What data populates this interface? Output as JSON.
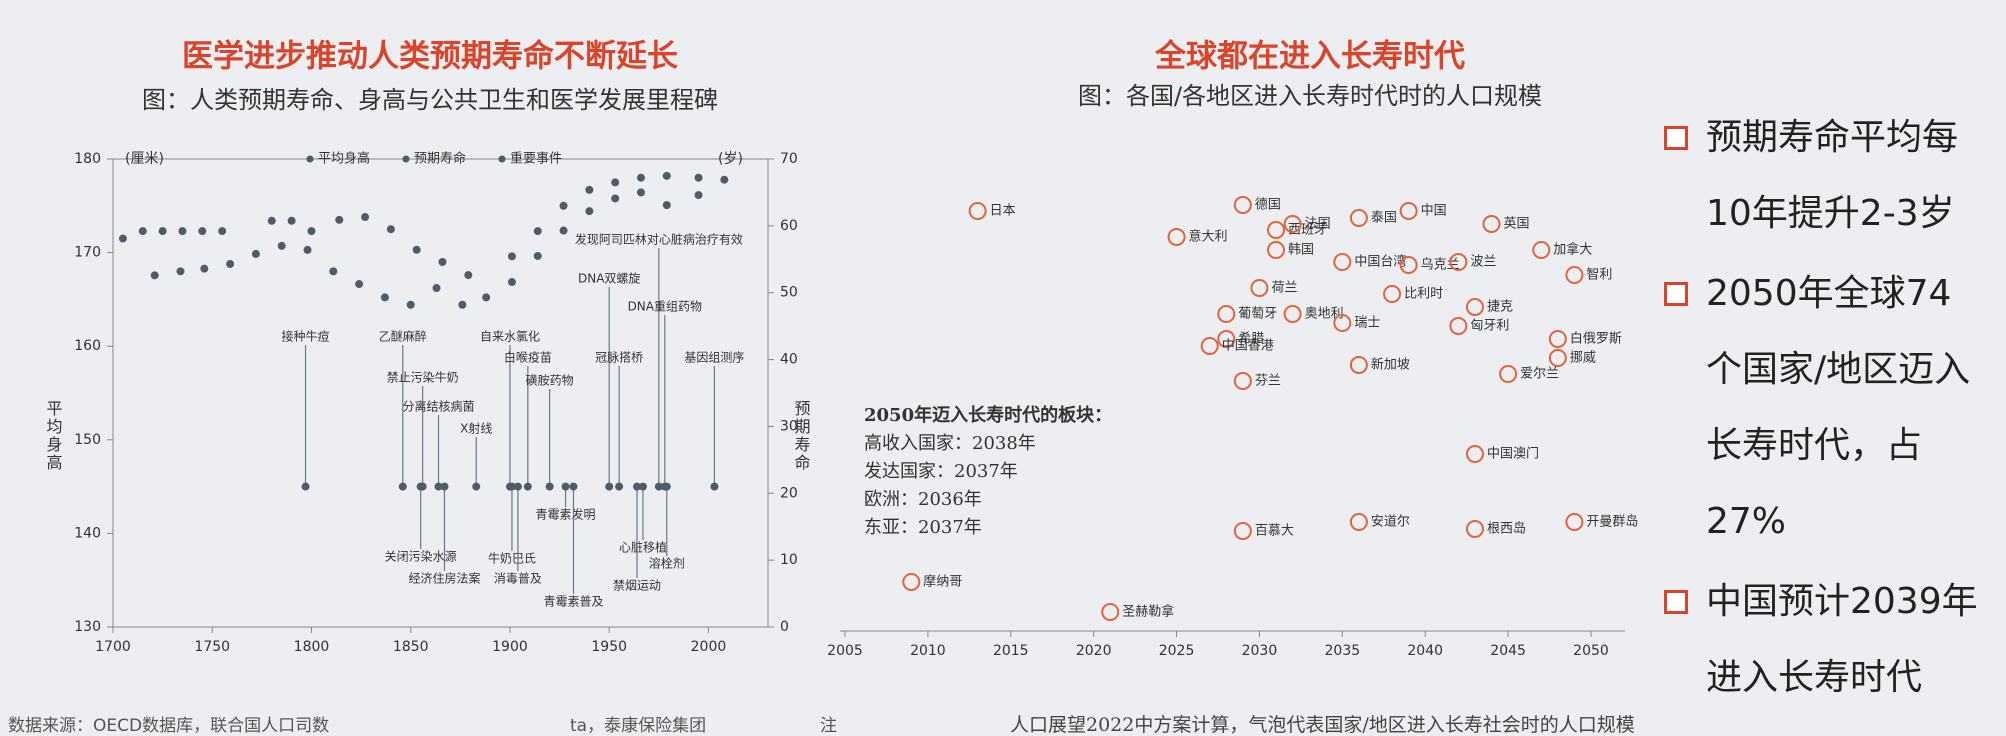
{
  "left_panel": {
    "title": "医学进步推动人类预期寿命不断延长",
    "subtitle": "图：人类预期寿命、身高与公共卫生和医学发展里程碑",
    "source": "数据来源：OECD数据库，联合国人口司数",
    "source_tail": "ta，泰康保险集团"
  },
  "right_panel": {
    "title": "全球都在进入长寿时代",
    "subtitle": "图：各国/各地区进入长寿时代时的人口规模",
    "note_prefix": "注",
    "note": "人口展望2022中方案计算，气泡代表国家/地区进入长寿社会时的人口规模",
    "inset": {
      "title": "2050年迈入长寿时代的板块：",
      "lines": [
        "高收入国家：2038年",
        "发达国家：2037年",
        "欧洲：2036年",
        "东亚：2037年"
      ]
    }
  },
  "bullets": [
    "预期寿命平均每10年提升2-3岁",
    "2050年全球74个国家/地区迈入长寿时代，占27%",
    "中国预计2039年进入长寿时代"
  ],
  "chart_data": [
    {
      "type": "scatter",
      "xlim": [
        1700,
        2030
      ],
      "xticks": [
        1700,
        1750,
        1800,
        1850,
        1900,
        1950,
        2000
      ],
      "ylim": [
        130,
        180
      ],
      "yticks": [
        130,
        140,
        150,
        160,
        170,
        180
      ],
      "y2lim": [
        0,
        70
      ],
      "y2ticks": [
        0,
        10,
        20,
        30,
        40,
        50,
        60,
        70
      ],
      "y_unit": "(厘米)",
      "y2_unit": "(岁)",
      "ylabel": "平均身高",
      "y2label": "预期寿命",
      "series": [
        {
          "name": "平均身高",
          "color": "#4d5b6b",
          "x": [
            1705,
            1715,
            1725,
            1735,
            1745,
            1755,
            1780,
            1790,
            1800,
            1814,
            1827,
            1840,
            1853,
            1866,
            1879,
            1901,
            1914,
            1927,
            1940,
            1953,
            1966,
            1979,
            1995
          ],
          "values": [
            171.5,
            172.3,
            172.3,
            172.3,
            172.3,
            172.3,
            173.4,
            173.4,
            172.3,
            173.5,
            173.8,
            172.5,
            170.3,
            169,
            167.6,
            169.6,
            172.3,
            175,
            176.7,
            177.5,
            178,
            178.2,
            178
          ]
        },
        {
          "name": "预期寿命",
          "color": "#4d5b6b",
          "axis": "y2",
          "x": [
            1721,
            1734,
            1746,
            1759,
            1772,
            1785,
            1798,
            1811,
            1824,
            1837,
            1850,
            1863,
            1876,
            1888,
            1901,
            1914,
            1927,
            1940,
            1953,
            1966,
            1979,
            1995,
            2008
          ],
          "values": [
            52.6,
            53.2,
            53.6,
            54.3,
            55.8,
            57,
            56.4,
            53.2,
            51.3,
            49.3,
            48.2,
            50.7,
            48.2,
            49.3,
            51.6,
            55.5,
            59.3,
            62.2,
            64.1,
            65,
            63.1,
            64.6,
            66.9
          ]
        }
      ],
      "events": {
        "name": "重要事件",
        "color": "#4d5b6b",
        "y": 145,
        "items": [
          {
            "year": 1797,
            "label": "接种牛痘"
          },
          {
            "year": 1846,
            "label": "乙醚麻醉"
          },
          {
            "year": 1856,
            "label": "禁止污染牛奶"
          },
          {
            "year": 1864,
            "label": "分离结核病菌"
          },
          {
            "year": 1883,
            "label": "X射线"
          },
          {
            "year": 1900,
            "label": "自来水氯化"
          },
          {
            "year": 1909,
            "label": "白喉疫苗"
          },
          {
            "year": 1920,
            "label": "磺胺药物"
          },
          {
            "year": 1950,
            "label": "DNA双螺旋"
          },
          {
            "year": 1955,
            "label": "冠脉搭桥"
          },
          {
            "year": 1975,
            "label": "发现阿司匹林对心脏病治疗有效"
          },
          {
            "year": 1978,
            "label": "DNA重组药物"
          },
          {
            "year": 2003,
            "label": "基因组测序"
          },
          {
            "year": 1855,
            "label": "关闭污染水源"
          },
          {
            "year": 1867,
            "label": "经济住房法案"
          },
          {
            "year": 1901,
            "label": "牛奶巴氏"
          },
          {
            "year": 1904,
            "label": "消毒普及"
          },
          {
            "year": 1928,
            "label": "青霉素发明"
          },
          {
            "year": 1967,
            "label": "心脏移植"
          },
          {
            "year": 1964,
            "label": "禁烟运动"
          },
          {
            "year": 1979,
            "label": "溶栓剂"
          },
          {
            "year": 1932,
            "label": "青霉素普及"
          }
        ]
      }
    },
    {
      "type": "bubble",
      "xlim": [
        2005,
        2050
      ],
      "xticks": [
        2005,
        2010,
        2015,
        2020,
        2025,
        2030,
        2035,
        2040,
        2045,
        2050
      ],
      "color": "#e0643a",
      "categories": [
        "日本",
        "意大利",
        "德国",
        "西班牙",
        "法国",
        "泰国",
        "中国",
        "英国",
        "加拿大",
        "韩国",
        "中国台湾",
        "乌克兰",
        "波兰",
        "智利",
        "荷兰",
        "比利时",
        "葡萄牙",
        "奥地利",
        "瑞士",
        "捷克",
        "希腊",
        "匈牙利",
        "白俄罗斯",
        "中国香港",
        "新加坡",
        "挪威",
        "芬兰",
        "爱尔兰",
        "中国澳门",
        "安道尔",
        "百慕大",
        "根西岛",
        "开曼群岛",
        "摩纳哥",
        "圣赫勒拿"
      ],
      "values": [
        2013,
        2025,
        2029,
        2031,
        2032,
        2036,
        2039,
        2044,
        2047,
        2031,
        2035,
        2039,
        2042,
        2049,
        2030,
        2038,
        2028,
        2032,
        2035,
        2043,
        2028,
        2042,
        2048,
        2027,
        2036,
        2048,
        2029,
        2045,
        2043,
        2036,
        2029,
        2043,
        2049,
        2009,
        2021
      ]
    }
  ]
}
